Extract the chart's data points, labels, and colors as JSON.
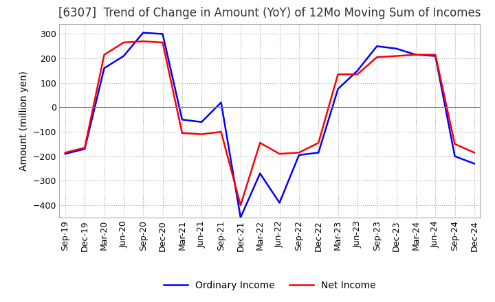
{
  "title": "[6307]  Trend of Change in Amount (YoY) of 12Mo Moving Sum of Incomes",
  "ylabel": "Amount (million yen)",
  "x_labels": [
    "Sep-19",
    "Dec-19",
    "Mar-20",
    "Jun-20",
    "Sep-20",
    "Dec-20",
    "Mar-21",
    "Jun-21",
    "Sep-21",
    "Dec-21",
    "Mar-22",
    "Jun-22",
    "Sep-22",
    "Dec-22",
    "Mar-23",
    "Jun-23",
    "Sep-23",
    "Dec-23",
    "Mar-24",
    "Jun-24",
    "Sep-24",
    "Dec-24"
  ],
  "ordinary_income": [
    -190,
    -170,
    160,
    210,
    305,
    300,
    -50,
    -60,
    20,
    -450,
    -270,
    -390,
    -195,
    -185,
    75,
    150,
    250,
    240,
    215,
    210,
    -200,
    -230
  ],
  "net_income": [
    -185,
    -165,
    215,
    265,
    270,
    265,
    -105,
    -110,
    -100,
    -400,
    -145,
    -190,
    -185,
    -145,
    135,
    135,
    205,
    210,
    215,
    215,
    -150,
    -185
  ],
  "ordinary_color": "#0000ff",
  "net_color": "#ff0000",
  "ylim": [
    -450,
    340
  ],
  "yticks": [
    -400,
    -300,
    -200,
    -100,
    0,
    100,
    200,
    300
  ],
  "grid_color": "#aaaaaa",
  "background_color": "#ffffff",
  "legend_ordinary": "Ordinary Income",
  "legend_net": "Net Income",
  "title_fontsize": 12,
  "axis_fontsize": 10,
  "tick_fontsize": 9
}
